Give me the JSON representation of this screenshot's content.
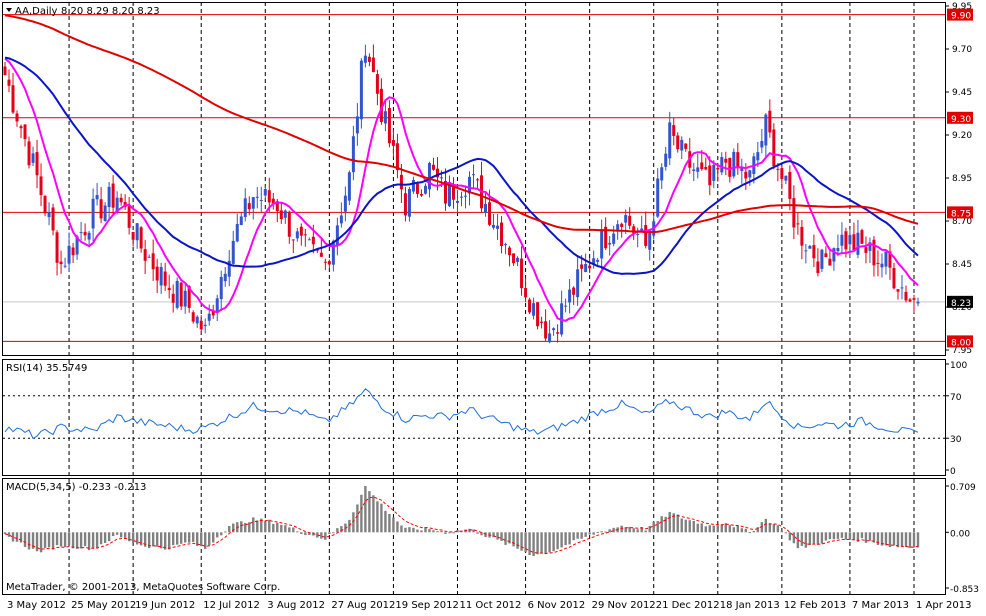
{
  "window": {
    "symbol_label": "AA,Daily",
    "ohlc_label": "8.20 8.29 8.20 8.23",
    "copyright": "MetaTrader, © 2001-2013, MetaQuotes Software Corp."
  },
  "colors": {
    "bull": "#3355cc",
    "bear": "#e3001b",
    "ma_fast": "#ff00ff",
    "ma_mid": "#0a14c8",
    "ma_slow": "#e00000",
    "hline": "#e00000",
    "rsi": "#1e6ed8",
    "macd_hist": "#808080",
    "macd_signal": "#ff0000",
    "grid": "#000000"
  },
  "chart_data": [
    {
      "type": "candlestick",
      "panel": "price",
      "ylim": [
        7.95,
        9.95
      ],
      "y_ticks": [
        "9.95",
        "9.70",
        "9.45",
        "9.20",
        "8.95",
        "8.70",
        "8.45",
        "8.20",
        "7.95"
      ],
      "x_dates": [
        "3 May 2012",
        "25 May 2012",
        "19 Jun 2012",
        "12 Jul 2012",
        "3 Aug 2012",
        "27 Aug 2012",
        "19 Sep 2012",
        "11 Oct 2012",
        "6 Nov 2012",
        "29 Nov 2012",
        "21 Dec 2012",
        "18 Jan 2013",
        "12 Feb 2013",
        "7 Mar 2013",
        "1 Apr 2013"
      ],
      "horizontal_levels": [
        {
          "value": 9.9,
          "label": "9.90"
        },
        {
          "value": 9.3,
          "label": "9.30"
        },
        {
          "value": 8.75,
          "label": "8.75"
        },
        {
          "value": 8.0,
          "label": "8.00"
        }
      ],
      "current_price": {
        "value": 8.23,
        "label": "8.23"
      },
      "close_anchors": [
        [
          0,
          9.55
        ],
        [
          8,
          8.95
        ],
        [
          14,
          8.45
        ],
        [
          22,
          8.75
        ],
        [
          28,
          8.85
        ],
        [
          34,
          8.55
        ],
        [
          40,
          8.35
        ],
        [
          46,
          8.2
        ],
        [
          50,
          8.05
        ],
        [
          56,
          8.55
        ],
        [
          62,
          8.85
        ],
        [
          68,
          8.8
        ],
        [
          74,
          8.55
        ],
        [
          80,
          8.45
        ],
        [
          86,
          8.95
        ],
        [
          90,
          9.75
        ],
        [
          95,
          9.25
        ],
        [
          100,
          8.8
        ],
        [
          106,
          9.0
        ],
        [
          110,
          8.85
        ],
        [
          116,
          8.95
        ],
        [
          120,
          8.8
        ],
        [
          126,
          8.55
        ],
        [
          132,
          8.2
        ],
        [
          136,
          8.05
        ],
        [
          142,
          8.3
        ],
        [
          148,
          8.55
        ],
        [
          154,
          8.75
        ],
        [
          160,
          8.55
        ],
        [
          166,
          9.2
        ],
        [
          170,
          9.05
        ],
        [
          176,
          8.9
        ],
        [
          180,
          9.05
        ],
        [
          186,
          8.95
        ],
        [
          190,
          9.25
        ],
        [
          194,
          8.95
        ],
        [
          198,
          8.65
        ],
        [
          204,
          8.45
        ],
        [
          208,
          8.6
        ],
        [
          214,
          8.55
        ],
        [
          220,
          8.45
        ],
        [
          226,
          8.25
        ],
        [
          228,
          8.23
        ]
      ],
      "series": [
        {
          "name": "",
          "color_key": "ma_fast",
          "period": 10
        },
        {
          "name": "",
          "color_key": "ma_mid",
          "period": 34
        },
        {
          "name": "",
          "color_key": "ma_slow",
          "period": 130
        }
      ]
    },
    {
      "type": "line",
      "panel": "rsi",
      "title": "RSI(14) 35.5749",
      "ylim": [
        0,
        100
      ],
      "y_ticks": [
        "100",
        "70",
        "30",
        "0"
      ],
      "levels": [
        70,
        30
      ],
      "anchors": [
        [
          0,
          40
        ],
        [
          8,
          32
        ],
        [
          14,
          40
        ],
        [
          22,
          37
        ],
        [
          28,
          50
        ],
        [
          34,
          45
        ],
        [
          40,
          42
        ],
        [
          46,
          38
        ],
        [
          50,
          40
        ],
        [
          56,
          50
        ],
        [
          62,
          60
        ],
        [
          68,
          57
        ],
        [
          74,
          55
        ],
        [
          80,
          45
        ],
        [
          86,
          60
        ],
        [
          90,
          75
        ],
        [
          95,
          58
        ],
        [
          100,
          48
        ],
        [
          106,
          52
        ],
        [
          110,
          50
        ],
        [
          116,
          57
        ],
        [
          120,
          50
        ],
        [
          126,
          42
        ],
        [
          132,
          35
        ],
        [
          136,
          38
        ],
        [
          142,
          45
        ],
        [
          148,
          55
        ],
        [
          154,
          62
        ],
        [
          160,
          52
        ],
        [
          166,
          65
        ],
        [
          170,
          58
        ],
        [
          176,
          50
        ],
        [
          180,
          55
        ],
        [
          186,
          48
        ],
        [
          190,
          65
        ],
        [
          194,
          52
        ],
        [
          198,
          40
        ],
        [
          204,
          44
        ],
        [
          208,
          42
        ],
        [
          214,
          46
        ],
        [
          220,
          40
        ],
        [
          226,
          35
        ],
        [
          228,
          35.57
        ]
      ]
    },
    {
      "type": "bar",
      "panel": "macd",
      "title": "MACD(5,34,5) -0.233 -0.213",
      "ylim": [
        -0.853,
        0.709
      ],
      "y_ticks": [
        "0.709",
        "0.00",
        "-0.853"
      ],
      "hist_anchors": [
        [
          0,
          -0.05
        ],
        [
          8,
          -0.3
        ],
        [
          14,
          -0.2
        ],
        [
          22,
          -0.25
        ],
        [
          28,
          -0.05
        ],
        [
          34,
          -0.2
        ],
        [
          40,
          -0.25
        ],
        [
          46,
          -0.15
        ],
        [
          50,
          -0.25
        ],
        [
          56,
          0.1
        ],
        [
          62,
          0.2
        ],
        [
          68,
          0.15
        ],
        [
          74,
          0.0
        ],
        [
          80,
          -0.1
        ],
        [
          86,
          0.2
        ],
        [
          90,
          0.7
        ],
        [
          95,
          0.35
        ],
        [
          100,
          0.05
        ],
        [
          106,
          0.05
        ],
        [
          110,
          0.0
        ],
        [
          116,
          0.05
        ],
        [
          120,
          -0.05
        ],
        [
          126,
          -0.2
        ],
        [
          132,
          -0.35
        ],
        [
          136,
          -0.3
        ],
        [
          142,
          -0.15
        ],
        [
          148,
          0.0
        ],
        [
          154,
          0.1
        ],
        [
          160,
          0.05
        ],
        [
          166,
          0.3
        ],
        [
          170,
          0.2
        ],
        [
          176,
          0.1
        ],
        [
          180,
          0.15
        ],
        [
          186,
          0.0
        ],
        [
          190,
          0.2
        ],
        [
          194,
          0.05
        ],
        [
          198,
          -0.25
        ],
        [
          204,
          -0.15
        ],
        [
          208,
          -0.1
        ],
        [
          214,
          -0.12
        ],
        [
          220,
          -0.2
        ],
        [
          226,
          -0.23
        ],
        [
          228,
          -0.233
        ]
      ],
      "signal_last": -0.213
    }
  ]
}
